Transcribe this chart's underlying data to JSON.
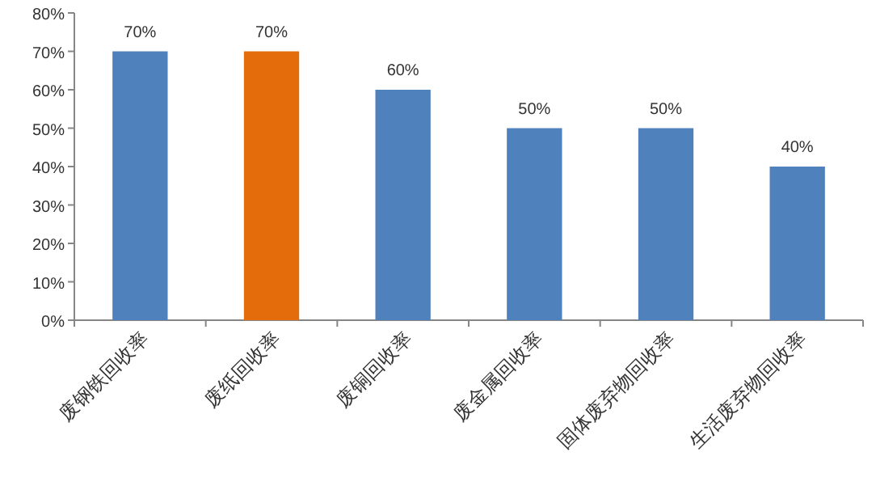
{
  "chart_data": {
    "type": "bar",
    "categories": [
      "废钢铁回收率",
      "废纸回收率",
      "废铜回收率",
      "废金属回收率",
      "固体废弃物回收率",
      "生活废弃物回收率"
    ],
    "values": [
      70,
      70,
      60,
      50,
      50,
      40
    ],
    "colors": [
      "#4f81bd",
      "#e46c0a",
      "#4f81bd",
      "#4f81bd",
      "#4f81bd",
      "#4f81bd"
    ],
    "value_labels": [
      "70%",
      "70%",
      "60%",
      "50%",
      "50%",
      "40%"
    ],
    "ylim": [
      0,
      80
    ],
    "yticks": [
      {
        "value": 0,
        "label": "0%"
      },
      {
        "value": 10,
        "label": "10%"
      },
      {
        "value": 20,
        "label": "20%"
      },
      {
        "value": 30,
        "label": "30%"
      },
      {
        "value": 40,
        "label": "40%"
      },
      {
        "value": 50,
        "label": "50%"
      },
      {
        "value": 60,
        "label": "60%"
      },
      {
        "value": 70,
        "label": "70%"
      },
      {
        "value": 80,
        "label": "80%"
      }
    ],
    "grid": false
  }
}
